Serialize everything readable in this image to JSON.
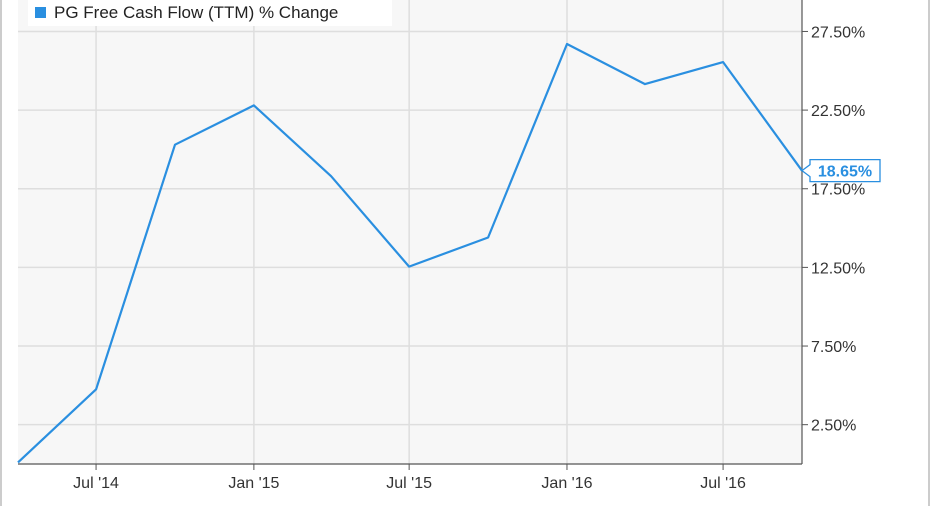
{
  "chart_data": {
    "type": "line",
    "legend": {
      "label": "PG Free Cash Flow (TTM) % Change",
      "position": "top-left"
    },
    "x": [
      "2014-04-01",
      "2014-07-01",
      "2014-10-01",
      "2015-01-01",
      "2015-04-01",
      "2015-07-01",
      "2015-10-01",
      "2016-01-01",
      "2016-04-01",
      "2016-07-01",
      "2016-10-01"
    ],
    "series": [
      {
        "name": "PG Free Cash Flow (TTM) % Change",
        "color": "#2a8fe0",
        "values": [
          0.1,
          4.75,
          20.3,
          22.8,
          18.3,
          12.55,
          14.4,
          26.7,
          24.15,
          25.55,
          18.65
        ]
      }
    ],
    "x_tick_labels": [
      "Jul '14",
      "Jan '15",
      "Jul '15",
      "Jan '16",
      "Jul '16"
    ],
    "y_tick_labels": [
      "27.50%",
      "22.50%",
      "17.50%",
      "12.50%",
      "7.50%",
      "2.50%"
    ],
    "y_ticks": [
      27.5,
      22.5,
      17.5,
      12.5,
      7.5,
      2.5
    ],
    "ylim": [
      0,
      29.5
    ],
    "xlim": [
      "2014-04-01",
      "2016-10-01"
    ],
    "grid": true,
    "last_value_label": "18.65%",
    "colors": {
      "line": "#2a8fe0",
      "plot_bg": "#f7f7f7",
      "grid": "#dedede",
      "axis": "#555555"
    }
  }
}
